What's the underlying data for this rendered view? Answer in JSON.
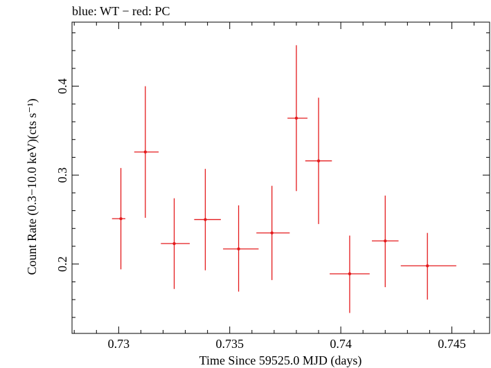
{
  "chart_data": {
    "type": "scatter",
    "title": "blue: WT − red: PC",
    "xlabel": "Time Since 59525.0 MJD (days)",
    "ylabel": "Count Rate (0.3−10.0 keV)(cts s⁻¹)",
    "xlim": [
      0.7279,
      0.7467
    ],
    "ylim": [
      0.122,
      0.472
    ],
    "xticks": [
      0.73,
      0.735,
      0.74,
      0.745
    ],
    "xtick_labels": [
      "0.73",
      "0.735",
      "0.74",
      "0.745"
    ],
    "yticks": [
      0.2,
      0.3,
      0.4
    ],
    "ytick_labels": [
      "0.2",
      "0.3",
      "0.4"
    ],
    "grid": false,
    "series": [
      {
        "color": "#e41a1c",
        "points": [
          {
            "x": 0.7301,
            "y": 0.251,
            "xlo": 0.7297,
            "xhi": 0.7303,
            "ylo": 0.194,
            "yhi": 0.308
          },
          {
            "x": 0.7312,
            "y": 0.326,
            "xlo": 0.7307,
            "xhi": 0.7318,
            "ylo": 0.252,
            "yhi": 0.4
          },
          {
            "x": 0.7325,
            "y": 0.223,
            "xlo": 0.7319,
            "xhi": 0.7332,
            "ylo": 0.172,
            "yhi": 0.274
          },
          {
            "x": 0.7339,
            "y": 0.25,
            "xlo": 0.7334,
            "xhi": 0.7346,
            "ylo": 0.193,
            "yhi": 0.307
          },
          {
            "x": 0.7354,
            "y": 0.217,
            "xlo": 0.7347,
            "xhi": 0.7363,
            "ylo": 0.169,
            "yhi": 0.266
          },
          {
            "x": 0.7369,
            "y": 0.235,
            "xlo": 0.7362,
            "xhi": 0.7377,
            "ylo": 0.182,
            "yhi": 0.288
          },
          {
            "x": 0.738,
            "y": 0.364,
            "xlo": 0.7376,
            "xhi": 0.7385,
            "ylo": 0.282,
            "yhi": 0.446
          },
          {
            "x": 0.739,
            "y": 0.316,
            "xlo": 0.7384,
            "xhi": 0.7396,
            "ylo": 0.245,
            "yhi": 0.387
          },
          {
            "x": 0.7404,
            "y": 0.189,
            "xlo": 0.7395,
            "xhi": 0.7413,
            "ylo": 0.145,
            "yhi": 0.232
          },
          {
            "x": 0.742,
            "y": 0.226,
            "xlo": 0.7414,
            "xhi": 0.7426,
            "ylo": 0.174,
            "yhi": 0.277
          },
          {
            "x": 0.7439,
            "y": 0.198,
            "xlo": 0.7427,
            "xhi": 0.7452,
            "ylo": 0.16,
            "yhi": 0.235
          }
        ]
      }
    ]
  }
}
